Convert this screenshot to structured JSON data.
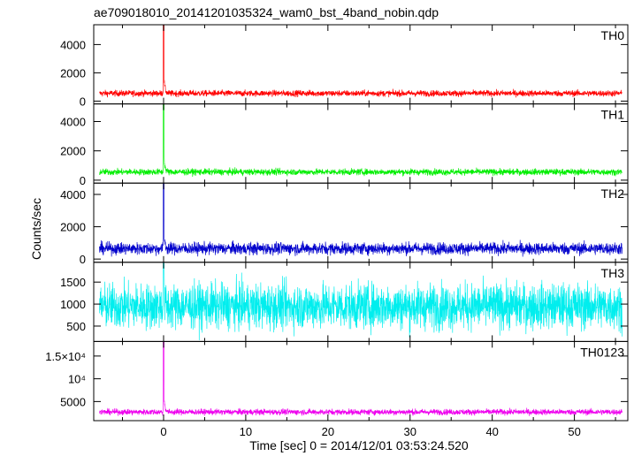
{
  "chart_data": {
    "type": "line",
    "title": "ae709018010_20141201035324_wam0_bst_4band_nobin.qdp",
    "xlabel": "Time [sec] 0 = 2014/12/01 03:53:24.520",
    "ylabel": "Counts/sec",
    "xlim": [
      -8.5,
      56.5
    ],
    "x_data_range": [
      -7.8,
      55.8
    ],
    "x_ticks": [
      0,
      10,
      20,
      30,
      40,
      50
    ],
    "x_tick_labels": [
      "0",
      "10",
      "20",
      "30",
      "40",
      "50"
    ],
    "burst_time": 0.0,
    "panels": [
      {
        "name": "TH0",
        "color": "#ff0000",
        "ylim": [
          -200,
          5400
        ],
        "y_ticks": [
          0,
          2000,
          4000
        ],
        "y_tick_labels": [
          "0",
          "2000",
          "4000"
        ],
        "baseline": 550,
        "noise": 220,
        "peak": 5400
      },
      {
        "name": "TH1",
        "color": "#00ee00",
        "ylim": [
          -200,
          5200
        ],
        "y_ticks": [
          0,
          2000,
          4000
        ],
        "y_tick_labels": [
          "0",
          "2000",
          "4000"
        ],
        "baseline": 560,
        "noise": 220,
        "peak": 5200
      },
      {
        "name": "TH2",
        "color": "#0000cc",
        "ylim": [
          -200,
          4700
        ],
        "y_ticks": [
          0,
          2000,
          4000
        ],
        "y_tick_labels": [
          "0",
          "2000",
          "4000"
        ],
        "baseline": 650,
        "noise": 380,
        "peak": 4700
      },
      {
        "name": "TH3",
        "color": "#00eeee",
        "ylim": [
          150,
          1950
        ],
        "y_ticks": [
          500,
          1000,
          1500
        ],
        "y_tick_labels": [
          "500",
          "1000",
          "1500"
        ],
        "baseline": 950,
        "noise": 520,
        "peak": 1950
      },
      {
        "name": "TH0123",
        "color": "#ee00ee",
        "ylim": [
          800,
          18200
        ],
        "y_ticks": [
          5000,
          10000,
          15000
        ],
        "y_tick_labels": [
          "5000",
          "10⁴",
          "1.5×10⁴"
        ],
        "baseline": 2700,
        "noise": 650,
        "peak": 18200
      }
    ]
  }
}
